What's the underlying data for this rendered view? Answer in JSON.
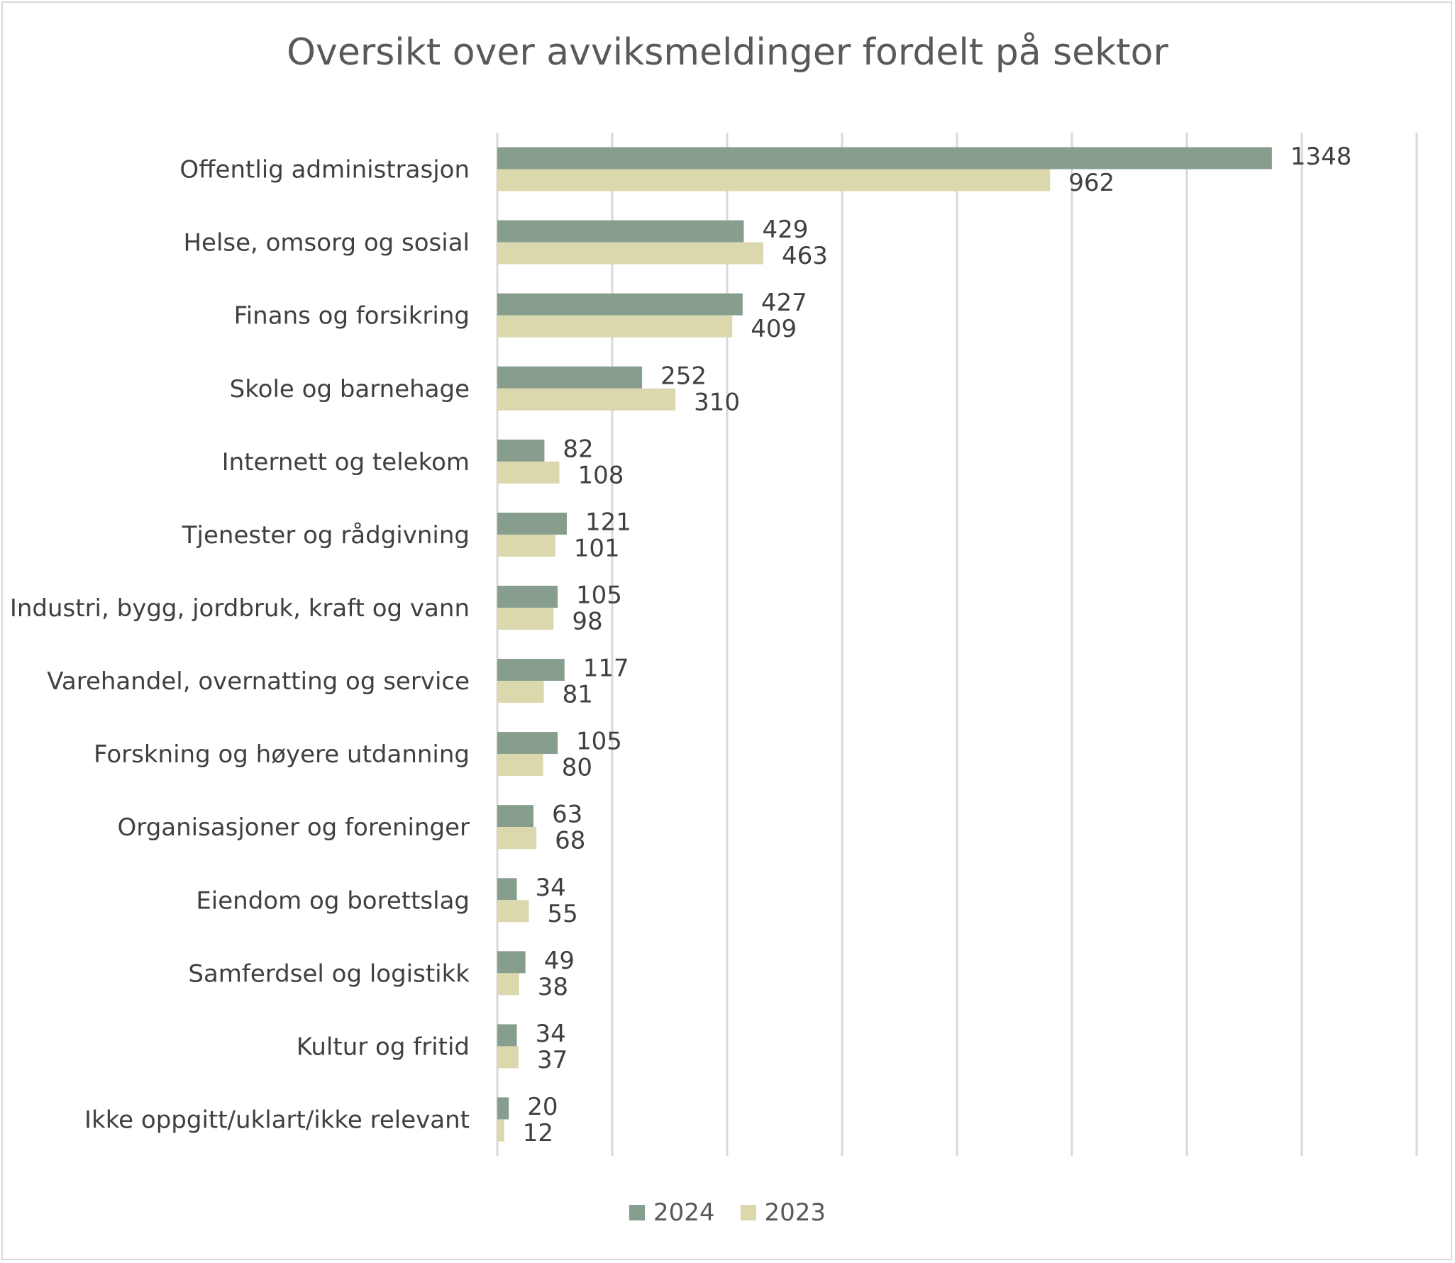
{
  "chart_data": {
    "type": "bar",
    "orientation": "horizontal",
    "title": "Oversikt over avviksmeldinger fordelt på sektor",
    "categories": [
      "Offentlig administrasjon",
      "Helse, omsorg og sosial",
      "Finans og forsikring",
      "Skole og barnehage",
      "Internett og telekom",
      "Tjenester og rådgivning",
      "Industri, bygg, jordbruk, kraft og vann",
      "Varehandel, overnatting og service",
      "Forskning og høyere utdanning",
      "Organisasjoner og foreninger",
      "Eiendom og borettslag",
      "Samferdsel og logistikk",
      "Kultur og fritid",
      "Ikke oppgitt/uklart/ikke relevant"
    ],
    "series": [
      {
        "name": "2024",
        "color": "#879e8e",
        "values": [
          1348,
          429,
          427,
          252,
          82,
          121,
          105,
          117,
          105,
          63,
          34,
          49,
          34,
          20
        ]
      },
      {
        "name": "2023",
        "color": "#dcd8ae",
        "values": [
          962,
          463,
          409,
          310,
          108,
          101,
          98,
          81,
          80,
          68,
          55,
          38,
          37,
          12
        ]
      }
    ],
    "xlim": [
      0,
      1600
    ],
    "x_gridlines_every": 200,
    "x_tick_labels_shown": false,
    "grid": true,
    "data_labels": true,
    "legend": "bottom"
  }
}
